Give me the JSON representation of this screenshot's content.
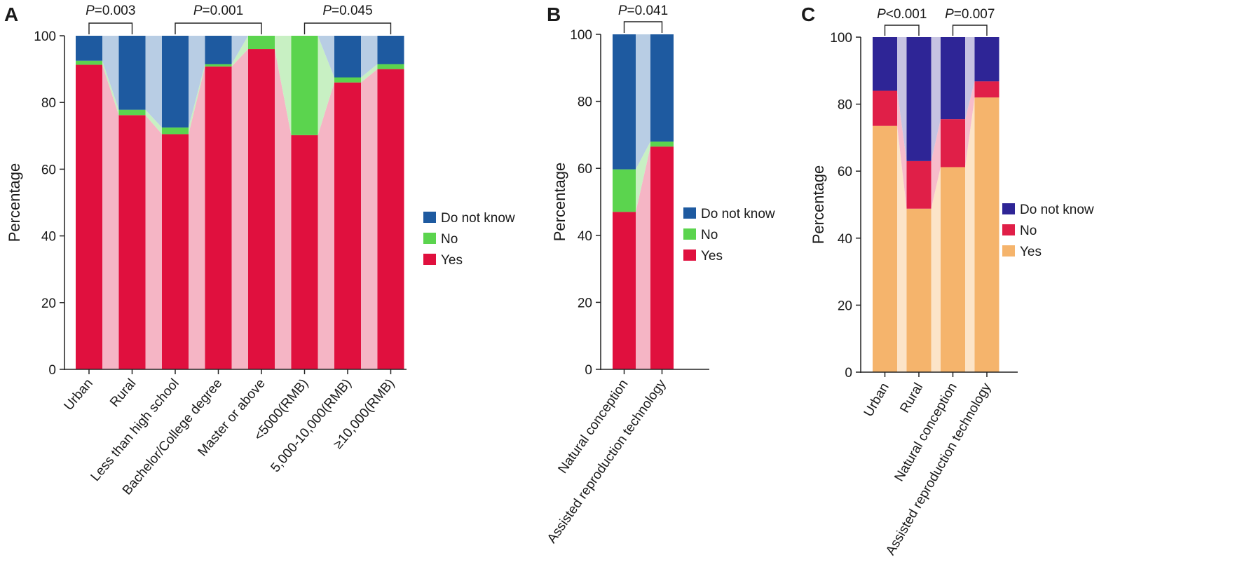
{
  "figure": {
    "panels": [
      {
        "letter": "A"
      },
      {
        "letter": "B"
      },
      {
        "letter": "C"
      }
    ]
  },
  "chart_data": [
    {
      "type": "bar",
      "stacked": true,
      "panel": "A",
      "title": "",
      "xlabel": "",
      "ylabel": "Percentage",
      "ylim": [
        0,
        100
      ],
      "yticks": [
        0,
        20,
        40,
        60,
        80,
        100
      ],
      "categories": [
        "Urban",
        "Rural",
        "Less than high school",
        "Bachelor/College degree",
        "Master or above",
        "<5000(RMB)",
        "5,000-10,000(RMB)",
        "≥10,000(RMB)"
      ],
      "series": [
        {
          "name": "Yes",
          "color": "#e0103e",
          "link_color": "#f5b5c5",
          "values": [
            91.3,
            76.2,
            70.5,
            90.8,
            96.0,
            70.2,
            86.0,
            90.0
          ]
        },
        {
          "name": "No",
          "color": "#5bd44e",
          "link_color": "#c8f0c3",
          "values": [
            1.2,
            1.6,
            2.0,
            0.7,
            4.0,
            29.8,
            1.5,
            1.5
          ]
        },
        {
          "name": "Do not know",
          "color": "#1e5aa0",
          "link_color": "#b8cde4",
          "values": [
            7.5,
            22.2,
            27.5,
            8.5,
            0.0,
            0.0,
            12.5,
            8.5
          ]
        }
      ],
      "legend": [
        "Do not know",
        "No",
        "Yes"
      ],
      "legend_position": "right",
      "annotations": [
        {
          "label_prefix": "P",
          "label_value": "=0.003",
          "from": 0,
          "to": 1
        },
        {
          "label_prefix": "P",
          "label_value": "=0.001",
          "from": 2,
          "to": 4
        },
        {
          "label_prefix": "P",
          "label_value": "=0.045",
          "from": 5,
          "to": 7
        }
      ]
    },
    {
      "type": "bar",
      "stacked": true,
      "panel": "B",
      "title": "",
      "xlabel": "",
      "ylabel": "Percentage",
      "ylim": [
        0,
        100
      ],
      "yticks": [
        0,
        20,
        40,
        60,
        80,
        100
      ],
      "categories": [
        "Natural conception",
        "Assisted reproduction technology"
      ],
      "series": [
        {
          "name": "Yes",
          "color": "#e0103e",
          "link_color": "#f5b5c5",
          "values": [
            47.0,
            66.5
          ]
        },
        {
          "name": "No",
          "color": "#5bd44e",
          "link_color": "#c8f0c3",
          "values": [
            12.7,
            1.5
          ]
        },
        {
          "name": "Do not know",
          "color": "#1e5aa0",
          "link_color": "#b8cde4",
          "values": [
            40.3,
            32.0
          ]
        }
      ],
      "legend": [
        "Do not know",
        "No",
        "Yes"
      ],
      "legend_position": "right",
      "annotations": [
        {
          "label_prefix": "P",
          "label_value": "=0.041",
          "from": 0,
          "to": 1
        }
      ]
    },
    {
      "type": "bar",
      "stacked": true,
      "panel": "C",
      "title": "",
      "xlabel": "",
      "ylabel": "Percentage",
      "ylim": [
        0,
        100
      ],
      "yticks": [
        0,
        20,
        40,
        60,
        80,
        100
      ],
      "categories": [
        "Urban",
        "Rural",
        "Natural conception",
        "Assisted reproduction technology"
      ],
      "series": [
        {
          "name": "Yes",
          "color": "#f5b46c",
          "link_color": "#fce4c8",
          "values": [
            73.5,
            48.8,
            61.2,
            82.0
          ]
        },
        {
          "name": "No",
          "color": "#e01f48",
          "link_color": "#f7bccb",
          "values": [
            10.5,
            14.2,
            14.3,
            4.8
          ]
        },
        {
          "name": "Do not know",
          "color": "#2e2596",
          "link_color": "#c6c3e2",
          "values": [
            16.0,
            37.0,
            24.5,
            13.2
          ]
        }
      ],
      "legend": [
        "Do not know",
        "No",
        "Yes"
      ],
      "legend_position": "right",
      "annotations": [
        {
          "label_prefix": "P",
          "label_value": "<0.001",
          "from": 0,
          "to": 1
        },
        {
          "label_prefix": "P",
          "label_value": "=0.007",
          "from": 2,
          "to": 3
        }
      ]
    }
  ]
}
